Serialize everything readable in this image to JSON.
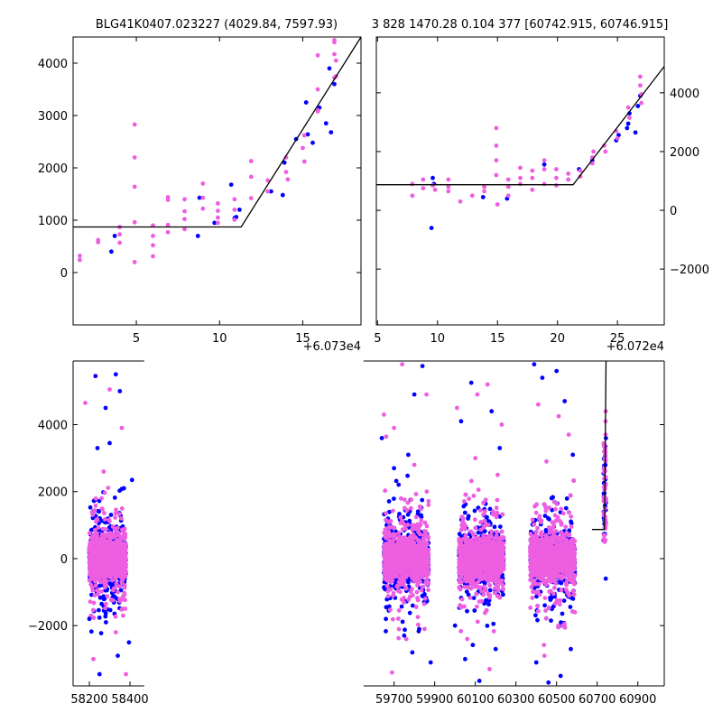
{
  "colors": {
    "blue_series": "#0000ff",
    "pink_series": "#ee5ee0",
    "model_line": "#000000",
    "background": "#ffffff"
  },
  "chart_data": [
    {
      "id": "top-left",
      "type": "scatter",
      "title": "BLG41K0407.023227 (4029.84, 7597.93)",
      "x_offset_label": "+6.073e4",
      "xlim": [
        1.2,
        18.5
      ],
      "ylim": [
        -1000,
        4500
      ],
      "x_ticks": [
        5,
        10,
        15
      ],
      "x_tick_labels": [
        "5",
        "10",
        "15"
      ],
      "y_ticks": [
        0,
        1000,
        2000,
        3000,
        4000
      ],
      "y_tick_labels": [
        "0",
        "1000",
        "2000",
        "3000",
        "4000"
      ],
      "y_axis_side": "left",
      "model": [
        [
          1.2,
          870
        ],
        [
          11.3,
          870
        ],
        [
          18.5,
          4500
        ]
      ],
      "series": [
        {
          "name": "blue",
          "points": [
            [
              3.5,
              400
            ],
            [
              3.7,
              700
            ],
            [
              8.7,
              700
            ],
            [
              8.8,
              1430
            ],
            [
              9.7,
              950
            ],
            [
              10.7,
              1680
            ],
            [
              10.9,
              1040
            ],
            [
              11.0,
              1060
            ],
            [
              11.2,
              1200
            ],
            [
              13.1,
              1550
            ],
            [
              13.8,
              1480
            ],
            [
              13.9,
              2100
            ],
            [
              14.6,
              2550
            ],
            [
              15.2,
              3250
            ],
            [
              15.3,
              2640
            ],
            [
              15.6,
              2480
            ],
            [
              16.0,
              3150
            ],
            [
              16.4,
              2850
            ],
            [
              16.6,
              3900
            ],
            [
              16.7,
              2680
            ],
            [
              16.9,
              3600
            ]
          ]
        },
        {
          "name": "pink",
          "points": [
            [
              1.6,
              240
            ],
            [
              1.6,
              320
            ],
            [
              2.7,
              580
            ],
            [
              2.7,
              620
            ],
            [
              4.0,
              870
            ],
            [
              4.0,
              730
            ],
            [
              4.0,
              570
            ],
            [
              4.9,
              2830
            ],
            [
              4.9,
              2200
            ],
            [
              4.9,
              1640
            ],
            [
              4.9,
              960
            ],
            [
              4.9,
              200
            ],
            [
              6.0,
              900
            ],
            [
              6.0,
              700
            ],
            [
              6.0,
              520
            ],
            [
              6.0,
              310
            ],
            [
              6.9,
              1440
            ],
            [
              6.9,
              1390
            ],
            [
              6.9,
              910
            ],
            [
              6.9,
              770
            ],
            [
              7.9,
              1400
            ],
            [
              7.9,
              1170
            ],
            [
              7.9,
              1020
            ],
            [
              7.9,
              830
            ],
            [
              9.0,
              1700
            ],
            [
              9.0,
              1430
            ],
            [
              9.0,
              1220
            ],
            [
              9.9,
              1320
            ],
            [
              9.9,
              1180
            ],
            [
              9.9,
              1050
            ],
            [
              9.9,
              950
            ],
            [
              10.9,
              1400
            ],
            [
              10.9,
              1200
            ],
            [
              10.9,
              1010
            ],
            [
              11.9,
              2130
            ],
            [
              11.9,
              1830
            ],
            [
              11.9,
              1420
            ],
            [
              12.9,
              1760
            ],
            [
              12.9,
              1550
            ],
            [
              14.0,
              2200
            ],
            [
              14.0,
              1920
            ],
            [
              14.1,
              1780
            ],
            [
              15.0,
              2380
            ],
            [
              15.1,
              2120
            ],
            [
              15.1,
              2620
            ],
            [
              15.9,
              3080
            ],
            [
              15.9,
              3100
            ],
            [
              15.9,
              3500
            ],
            [
              15.9,
              4150
            ],
            [
              16.9,
              4440
            ],
            [
              16.9,
              4400
            ],
            [
              16.9,
              3720
            ],
            [
              16.9,
              4170
            ],
            [
              17.0,
              4050
            ],
            [
              17.0,
              3750
            ]
          ]
        }
      ]
    },
    {
      "id": "top-right",
      "type": "scatter",
      "title": "3 828 1470.28 0.104 377 [60742.915, 60746.915]",
      "x_offset_label": "+6.072e4",
      "xlim": [
        4.9,
        28.9
      ],
      "ylim": [
        -3900,
        5900
      ],
      "x_ticks": [
        5,
        10,
        15,
        20,
        25
      ],
      "x_tick_labels": [
        "5",
        "10",
        "15",
        "20",
        "25"
      ],
      "y_ticks": [
        -2000,
        0,
        2000,
        4000
      ],
      "y_tick_labels": [
        "−2000",
        "0",
        "2000",
        "4000"
      ],
      "y_axis_side": "right",
      "model": [
        [
          4.9,
          870
        ],
        [
          21.3,
          870
        ],
        [
          28.9,
          4900
        ]
      ],
      "series": [
        {
          "name": "blue",
          "points": [
            [
              9.5,
              -600
            ],
            [
              9.6,
              1100
            ],
            [
              9.7,
              900
            ],
            [
              13.8,
              450
            ],
            [
              15.8,
              400
            ],
            [
              18.9,
              1560
            ],
            [
              21.8,
              1400
            ],
            [
              22.9,
              1700
            ],
            [
              24.9,
              2380
            ],
            [
              25.1,
              2560
            ],
            [
              25.8,
              2800
            ],
            [
              25.9,
              2950
            ],
            [
              26.0,
              3300
            ],
            [
              26.5,
              2650
            ],
            [
              26.7,
              3550
            ],
            [
              26.9,
              3900
            ]
          ]
        },
        {
          "name": "pink",
          "points": [
            [
              7.9,
              900
            ],
            [
              7.9,
              500
            ],
            [
              8.8,
              1050
            ],
            [
              8.8,
              750
            ],
            [
              9.6,
              850
            ],
            [
              9.8,
              700
            ],
            [
              10.9,
              1050
            ],
            [
              10.9,
              800
            ],
            [
              10.9,
              650
            ],
            [
              11.9,
              300
            ],
            [
              12.9,
              500
            ],
            [
              13.9,
              800
            ],
            [
              13.9,
              650
            ],
            [
              14.9,
              2800
            ],
            [
              14.9,
              2200
            ],
            [
              14.9,
              1700
            ],
            [
              14.9,
              1200
            ],
            [
              15.0,
              200
            ],
            [
              15.9,
              1050
            ],
            [
              15.9,
              800
            ],
            [
              15.9,
              500
            ],
            [
              16.9,
              1450
            ],
            [
              16.9,
              1100
            ],
            [
              16.9,
              900
            ],
            [
              17.9,
              1350
            ],
            [
              17.9,
              1100
            ],
            [
              17.9,
              700
            ],
            [
              18.9,
              1700
            ],
            [
              18.9,
              1400
            ],
            [
              18.9,
              900
            ],
            [
              19.9,
              1400
            ],
            [
              19.9,
              1100
            ],
            [
              19.9,
              850
            ],
            [
              20.9,
              1250
            ],
            [
              20.9,
              1050
            ],
            [
              21.9,
              1350
            ],
            [
              21.9,
              1150
            ],
            [
              22.9,
              1800
            ],
            [
              22.9,
              1600
            ],
            [
              23.0,
              2000
            ],
            [
              23.9,
              2200
            ],
            [
              24.0,
              2000
            ],
            [
              24.9,
              2700
            ],
            [
              25.0,
              2450
            ],
            [
              25.9,
              3500
            ],
            [
              26.0,
              3150
            ],
            [
              26.9,
              4550
            ],
            [
              26.9,
              4250
            ],
            [
              27.0,
              3950
            ],
            [
              27.0,
              3650
            ]
          ]
        }
      ]
    },
    {
      "id": "bottom",
      "type": "scatter",
      "title": "",
      "xlim": [
        58120,
        61030
      ],
      "ylim": [
        -3800,
        5900
      ],
      "x_ticks": [
        58200,
        58400,
        59700,
        59900,
        60100,
        60300,
        60500,
        60700,
        60900
      ],
      "x_tick_labels": [
        "58200",
        "58400",
        "59700",
        "59900",
        "60100",
        "60300",
        "60500",
        "60700",
        "60900"
      ],
      "y_ticks": [
        -2000,
        0,
        2000,
        4000
      ],
      "y_tick_labels": [
        "−2000",
        "0",
        "2000",
        "4000"
      ],
      "y_axis_side": "left",
      "broken_axis": [
        {
          "left_end": 58470,
          "right_start": 59550
        }
      ],
      "model": [
        [
          60674,
          870
        ],
        [
          60735.9,
          870
        ],
        [
          60743.4,
          5900
        ]
      ],
      "clusters": [
        {
          "center": 58290,
          "half_width": 90,
          "y_range": [
            -3450,
            5500
          ]
        },
        {
          "center": 59760,
          "half_width": 110,
          "y_range": [
            -3450,
            5800
          ]
        },
        {
          "center": 60130,
          "half_width": 110,
          "y_range": [
            -3650,
            5700
          ]
        },
        {
          "center": 60480,
          "half_width": 110,
          "y_range": [
            -3800,
            5800
          ]
        },
        {
          "center": 60737,
          "half_width": 6,
          "y_range": [
            -600,
            4500
          ]
        }
      ],
      "series": [
        {
          "name": "blue",
          "points": [
            [
              58230,
              5450
            ],
            [
              58280,
              4500
            ],
            [
              58330,
              5500
            ],
            [
              58350,
              5000
            ],
            [
              58240,
              3300
            ],
            [
              58300,
              3450
            ],
            [
              58370,
              2100
            ],
            [
              58410,
              2350
            ],
            [
              58250,
              -3450
            ],
            [
              58340,
              -2900
            ],
            [
              58200,
              -1800
            ],
            [
              58395,
              -2500
            ],
            [
              59640,
              3600
            ],
            [
              59700,
              2700
            ],
            [
              59770,
              3100
            ],
            [
              59800,
              4900
            ],
            [
              59840,
              5750
            ],
            [
              59880,
              -3100
            ],
            [
              59790,
              -2800
            ],
            [
              59660,
              -1800
            ],
            [
              59750,
              -2300
            ],
            [
              60030,
              4100
            ],
            [
              60080,
              5250
            ],
            [
              60180,
              4400
            ],
            [
              60220,
              3300
            ],
            [
              60050,
              -3000
            ],
            [
              60120,
              -3650
            ],
            [
              60200,
              -2700
            ],
            [
              60000,
              -2000
            ],
            [
              60390,
              5800
            ],
            [
              60430,
              5400
            ],
            [
              60500,
              5600
            ],
            [
              60540,
              4700
            ],
            [
              60580,
              3100
            ],
            [
              60400,
              -3100
            ],
            [
              60460,
              -3700
            ],
            [
              60520,
              -3500
            ],
            [
              60570,
              -2700
            ],
            [
              60742,
              -600
            ],
            [
              60740,
              2800
            ],
            [
              60743,
              3600
            ]
          ]
        },
        {
          "name": "pink",
          "points": [
            [
              58180,
              4650
            ],
            [
              58300,
              5050
            ],
            [
              58360,
              3900
            ],
            [
              58270,
              2600
            ],
            [
              58220,
              -3000
            ],
            [
              58330,
              -2200
            ],
            [
              58380,
              -3450
            ],
            [
              58260,
              1800
            ],
            [
              59650,
              4300
            ],
            [
              59740,
              5800
            ],
            [
              59860,
              4900
            ],
            [
              59700,
              3900
            ],
            [
              59690,
              -3400
            ],
            [
              59760,
              -2400
            ],
            [
              59850,
              -2100
            ],
            [
              59800,
              2800
            ],
            [
              60010,
              4500
            ],
            [
              60110,
              4900
            ],
            [
              60160,
              5200
            ],
            [
              60230,
              4000
            ],
            [
              60060,
              -2400
            ],
            [
              60170,
              -3300
            ],
            [
              60100,
              3000
            ],
            [
              60210,
              2500
            ],
            [
              60410,
              4600
            ],
            [
              60510,
              4250
            ],
            [
              60560,
              3700
            ],
            [
              60450,
              2900
            ],
            [
              60440,
              -2900
            ],
            [
              60530,
              -2000
            ],
            [
              60590,
              -1600
            ],
            [
              60736,
              700
            ],
            [
              60737,
              500
            ],
            [
              60738,
              1500
            ],
            [
              60739,
              2100
            ],
            [
              60740,
              3000
            ],
            [
              60741,
              3700
            ],
            [
              60742,
              4400
            ],
            [
              60741,
              4100
            ],
            [
              60739,
              1700
            ]
          ]
        }
      ]
    }
  ]
}
